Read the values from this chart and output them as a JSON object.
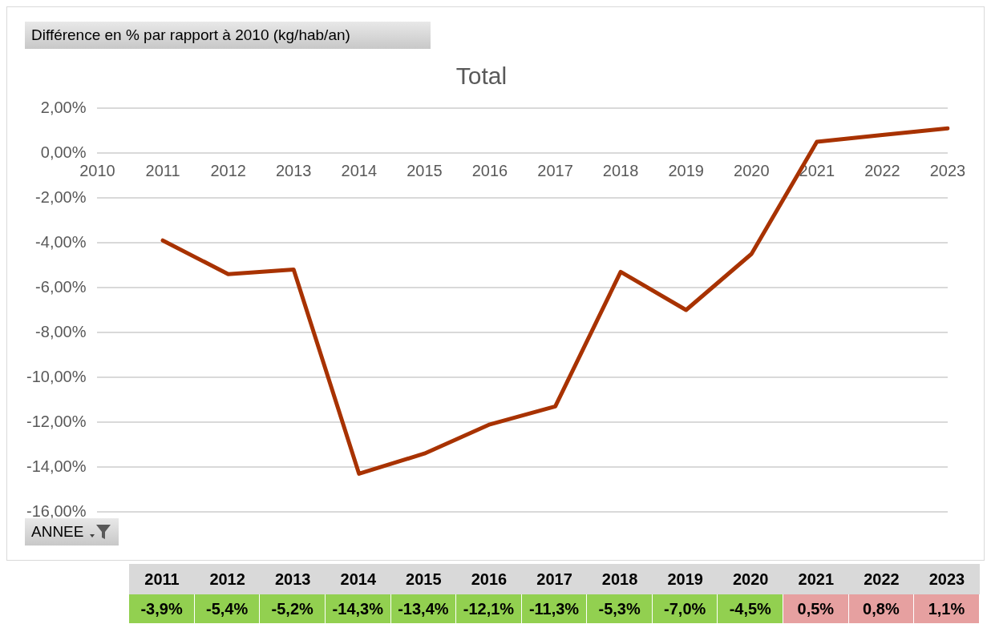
{
  "chart_data": {
    "type": "line",
    "title": "Total",
    "annotations": [
      "Différence en % par rapport à 2010 (kg/hab/an)",
      "ANNEE"
    ],
    "categories": [
      "2010",
      "2011",
      "2012",
      "2013",
      "2014",
      "2015",
      "2016",
      "2017",
      "2018",
      "2019",
      "2020",
      "2021",
      "2022",
      "2023"
    ],
    "series": [
      {
        "color": "#a83200",
        "values": [
          null,
          -3.9,
          -5.4,
          -5.2,
          -14.3,
          -13.4,
          -12.1,
          -11.3,
          -5.3,
          -7.0,
          -4.5,
          0.5,
          0.8,
          1.1
        ],
        "value_labels": [
          null,
          "-3,9%",
          "-5,4%",
          "-5,2%",
          "-14,3%",
          "-13,4%",
          "-12,1%",
          "-11,3%",
          "-5,3%",
          "-7,0%",
          "-4,5%",
          "0,5%",
          "0,8%",
          "1,1%"
        ]
      }
    ],
    "ylim": [
      -16,
      2
    ],
    "yticks": [
      {
        "value": -16,
        "label": "-16,00%"
      },
      {
        "value": -14,
        "label": "-14,00%"
      },
      {
        "value": -12,
        "label": "-12,00%"
      },
      {
        "value": -10,
        "label": "-10,00%"
      },
      {
        "value": -8,
        "label": "-8,00%"
      },
      {
        "value": -6,
        "label": "-6,00%"
      },
      {
        "value": -4,
        "label": "-4,00%"
      },
      {
        "value": -2,
        "label": "-2,00%"
      },
      {
        "value": 0,
        "label": "0,00%"
      },
      {
        "value": 2,
        "label": "2,00%"
      }
    ],
    "grid": "y",
    "legend": false,
    "marker": "none",
    "line_style": "solid"
  }
}
